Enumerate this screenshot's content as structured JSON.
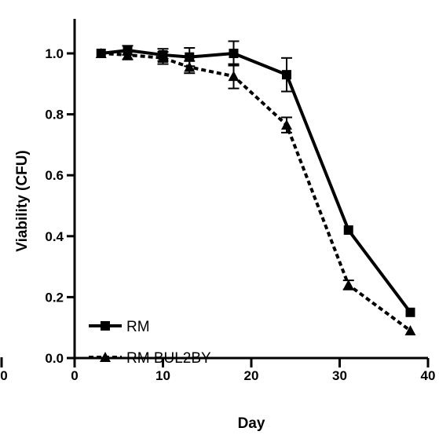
{
  "chart_data": {
    "type": "line",
    "xlabel": "Day",
    "ylabel": "Viability (CFU)",
    "xlim": [
      0,
      40
    ],
    "ylim": [
      0.0,
      1.1
    ],
    "x_ticks": [
      0,
      10,
      20,
      30,
      40
    ],
    "x_tick_labels": [
      "0",
      "10",
      "20",
      "30",
      "40"
    ],
    "y_ticks": [
      0.0,
      0.2,
      0.4,
      0.6,
      0.8,
      1.0
    ],
    "y_tick_labels": [
      "0.0",
      "0.2",
      "0.4",
      "0.6",
      "0.8",
      "1.0"
    ],
    "grid": false,
    "legend_position": "bottom-left",
    "series": [
      {
        "name": "RM",
        "marker": "square",
        "line_style": "solid",
        "color": "#000000",
        "x": [
          3,
          6,
          10,
          13,
          18,
          24,
          31,
          38
        ],
        "y": [
          1.0,
          1.01,
          0.995,
          0.988,
          1.0,
          0.93,
          0.42,
          0.15
        ],
        "error": [
          0.0,
          0.015,
          0.02,
          0.03,
          0.04,
          0.055,
          0.0,
          0.0
        ]
      },
      {
        "name": "RM BUL2BY",
        "marker": "triangle",
        "line_style": "dashed",
        "color": "#000000",
        "x": [
          3,
          6,
          10,
          13,
          18,
          24,
          31,
          38
        ],
        "y": [
          1.0,
          0.995,
          0.985,
          0.955,
          0.925,
          0.765,
          0.24,
          0.09
        ],
        "error": [
          0.0,
          0.015,
          0.02,
          0.02,
          0.04,
          0.025,
          0.015,
          0.0
        ]
      }
    ],
    "left_edge_fragment": "0"
  }
}
